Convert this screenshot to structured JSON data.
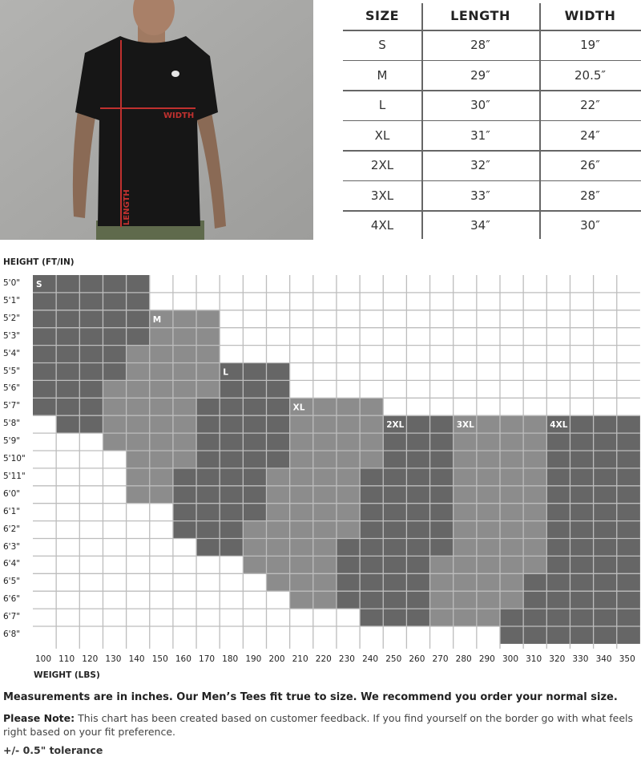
{
  "photo": {
    "width_label": "WIDTH",
    "length_label": "LENGTH",
    "line_color": "#c0312f"
  },
  "size_table": {
    "headers": [
      "SIZE",
      "LENGTH",
      "WIDTH"
    ],
    "rows": [
      [
        "S",
        "28″",
        "19″"
      ],
      [
        "M",
        "29″",
        "20.5″"
      ],
      [
        "L",
        "30″",
        "22″"
      ],
      [
        "XL",
        "31″",
        "24″"
      ],
      [
        "2XL",
        "32″",
        "26″"
      ],
      [
        "3XL",
        "33″",
        "28″"
      ],
      [
        "4XL",
        "34″",
        "30″"
      ]
    ]
  },
  "chart_data": {
    "type": "heatmap",
    "ylabel": "HEIGHT (FT/IN)",
    "xlabel": "WEIGHT (LBS)",
    "x_ticks": [
      100,
      110,
      120,
      130,
      140,
      150,
      160,
      170,
      180,
      190,
      200,
      210,
      220,
      230,
      240,
      250,
      260,
      270,
      280,
      290,
      300,
      310,
      320,
      330,
      340,
      350
    ],
    "y_ticks": [
      "5'0\"",
      "5'1\"",
      "5'2\"",
      "5'3\"",
      "5'4\"",
      "5'5\"",
      "5'6\"",
      "5'7\"",
      "5'8\"",
      "5'9\"",
      "5'10\"",
      "5'11\"",
      "6'0\"",
      "6'1\"",
      "6'2\"",
      "6'3\"",
      "6'4\"",
      "6'5\"",
      "6'6\"",
      "6'7\"",
      "6'8\""
    ],
    "size_colors": {
      "S": "#666666",
      "M": "#8c8c8c",
      "L": "#666666",
      "XL": "#8c8c8c",
      "2XL": "#666666",
      "3XL": "#8c8c8c",
      "4XL": "#666666"
    },
    "size_labels": [
      {
        "size": "S",
        "height": "5'0\"",
        "weight": 100
      },
      {
        "size": "M",
        "height": "5'2\"",
        "weight": 150
      },
      {
        "size": "L",
        "height": "5'5\"",
        "weight": 180
      },
      {
        "size": "XL",
        "height": "5'7\"",
        "weight": 210
      },
      {
        "size": "2XL",
        "height": "5'8\"",
        "weight": 250
      },
      {
        "size": "3XL",
        "height": "5'8\"",
        "weight": 280
      },
      {
        "size": "4XL",
        "height": "5'8\"",
        "weight": 320
      }
    ],
    "rows": [
      {
        "height": "5'0\"",
        "ranges": [
          [
            "S",
            100,
            140
          ]
        ]
      },
      {
        "height": "5'1\"",
        "ranges": [
          [
            "S",
            100,
            140
          ]
        ]
      },
      {
        "height": "5'2\"",
        "ranges": [
          [
            "S",
            100,
            140
          ],
          [
            "M",
            150,
            170
          ]
        ]
      },
      {
        "height": "5'3\"",
        "ranges": [
          [
            "S",
            100,
            140
          ],
          [
            "M",
            150,
            170
          ]
        ]
      },
      {
        "height": "5'4\"",
        "ranges": [
          [
            "S",
            100,
            130
          ],
          [
            "M",
            140,
            170
          ]
        ]
      },
      {
        "height": "5'5\"",
        "ranges": [
          [
            "S",
            100,
            130
          ],
          [
            "M",
            140,
            170
          ],
          [
            "L",
            180,
            200
          ]
        ]
      },
      {
        "height": "5'6\"",
        "ranges": [
          [
            "S",
            100,
            120
          ],
          [
            "M",
            130,
            170
          ],
          [
            "L",
            180,
            200
          ]
        ]
      },
      {
        "height": "5'7\"",
        "ranges": [
          [
            "S",
            100,
            120
          ],
          [
            "M",
            130,
            160
          ],
          [
            "L",
            170,
            200
          ],
          [
            "XL",
            210,
            240
          ]
        ]
      },
      {
        "height": "5'8\"",
        "ranges": [
          [
            "S",
            110,
            120
          ],
          [
            "M",
            130,
            160
          ],
          [
            "L",
            170,
            200
          ],
          [
            "XL",
            210,
            240
          ],
          [
            "2XL",
            250,
            270
          ],
          [
            "3XL",
            280,
            310
          ],
          [
            "4XL",
            320,
            350
          ]
        ]
      },
      {
        "height": "5'9\"",
        "ranges": [
          [
            "M",
            130,
            160
          ],
          [
            "L",
            170,
            200
          ],
          [
            "XL",
            210,
            240
          ],
          [
            "2XL",
            250,
            270
          ],
          [
            "3XL",
            280,
            310
          ],
          [
            "4XL",
            320,
            350
          ]
        ]
      },
      {
        "height": "5'10\"",
        "ranges": [
          [
            "M",
            140,
            160
          ],
          [
            "L",
            170,
            200
          ],
          [
            "XL",
            210,
            240
          ],
          [
            "2XL",
            250,
            270
          ],
          [
            "3XL",
            280,
            310
          ],
          [
            "4XL",
            320,
            350
          ]
        ]
      },
      {
        "height": "5'11\"",
        "ranges": [
          [
            "M",
            140,
            150
          ],
          [
            "L",
            160,
            190
          ],
          [
            "XL",
            200,
            230
          ],
          [
            "2XL",
            240,
            270
          ],
          [
            "3XL",
            280,
            310
          ],
          [
            "4XL",
            320,
            350
          ]
        ]
      },
      {
        "height": "6'0\"",
        "ranges": [
          [
            "M",
            140,
            150
          ],
          [
            "L",
            160,
            190
          ],
          [
            "XL",
            200,
            230
          ],
          [
            "2XL",
            240,
            270
          ],
          [
            "3XL",
            280,
            310
          ],
          [
            "4XL",
            320,
            350
          ]
        ]
      },
      {
        "height": "6'1\"",
        "ranges": [
          [
            "L",
            160,
            190
          ],
          [
            "XL",
            200,
            230
          ],
          [
            "2XL",
            240,
            270
          ],
          [
            "3XL",
            280,
            310
          ],
          [
            "4XL",
            320,
            350
          ]
        ]
      },
      {
        "height": "6'2\"",
        "ranges": [
          [
            "L",
            160,
            180
          ],
          [
            "XL",
            190,
            230
          ],
          [
            "2XL",
            240,
            270
          ],
          [
            "3XL",
            280,
            310
          ],
          [
            "4XL",
            320,
            350
          ]
        ]
      },
      {
        "height": "6'3\"",
        "ranges": [
          [
            "L",
            170,
            180
          ],
          [
            "XL",
            190,
            220
          ],
          [
            "2XL",
            230,
            270
          ],
          [
            "3XL",
            280,
            310
          ],
          [
            "4XL",
            320,
            350
          ]
        ]
      },
      {
        "height": "6'4\"",
        "ranges": [
          [
            "XL",
            190,
            220
          ],
          [
            "2XL",
            230,
            260
          ],
          [
            "3XL",
            270,
            310
          ],
          [
            "4XL",
            320,
            350
          ]
        ]
      },
      {
        "height": "6'5\"",
        "ranges": [
          [
            "XL",
            200,
            220
          ],
          [
            "2XL",
            230,
            260
          ],
          [
            "3XL",
            270,
            300
          ],
          [
            "4XL",
            310,
            350
          ]
        ]
      },
      {
        "height": "6'6\"",
        "ranges": [
          [
            "XL",
            210,
            220
          ],
          [
            "2XL",
            230,
            260
          ],
          [
            "3XL",
            270,
            300
          ],
          [
            "4XL",
            310,
            350
          ]
        ]
      },
      {
        "height": "6'7\"",
        "ranges": [
          [
            "2XL",
            240,
            260
          ],
          [
            "3XL",
            270,
            290
          ],
          [
            "4XL",
            300,
            350
          ]
        ]
      },
      {
        "height": "6'8\"",
        "ranges": [
          [
            "4XL",
            300,
            350
          ]
        ]
      }
    ]
  },
  "notes": {
    "fit": "Measurements are in inches. Our Men’s Tees fit true to size. We recommend you order your normal size.",
    "please_note_label": "Please Note:",
    "please_note_text": " This chart has been created based on customer feedback. If you find yourself on the border go with what feels right based on your fit preference.",
    "tolerance": "+/- 0.5\" tolerance"
  }
}
